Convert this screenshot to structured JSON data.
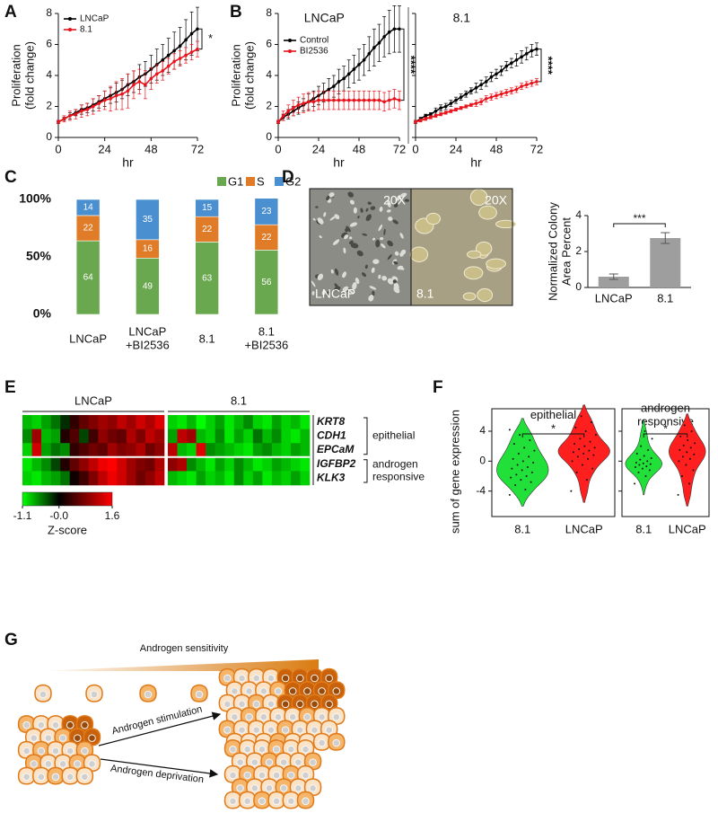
{
  "chart_data": [
    {
      "type": "line",
      "panel": "A",
      "xlabel": "hr",
      "ylabel": [
        "Proliferation",
        "(fold change)"
      ],
      "xlim": [
        0,
        72
      ],
      "xticks": [
        0,
        24,
        48,
        72
      ],
      "ylim": [
        0,
        8
      ],
      "yticks": [
        0,
        2,
        4,
        6,
        8
      ],
      "legend": "upper left",
      "annotation": "*",
      "x": [
        0,
        3,
        6,
        9,
        12,
        15,
        18,
        21,
        24,
        27,
        30,
        33,
        36,
        39,
        42,
        45,
        48,
        51,
        54,
        57,
        60,
        63,
        66,
        69,
        72
      ],
      "series": [
        {
          "name": "LNCaP",
          "color": "#000000",
          "values": [
            1.0,
            1.2,
            1.4,
            1.6,
            1.8,
            1.9,
            2.1,
            2.3,
            2.5,
            2.7,
            2.9,
            3.1,
            3.4,
            3.6,
            3.9,
            4.1,
            4.4,
            4.7,
            5.0,
            5.3,
            5.6,
            5.9,
            6.3,
            6.7,
            7.0
          ],
          "errors": [
            0.1,
            0.1,
            0.2,
            0.2,
            0.3,
            0.3,
            0.4,
            0.4,
            0.5,
            0.5,
            0.6,
            0.6,
            0.7,
            0.7,
            0.8,
            0.8,
            0.9,
            1.0,
            1.0,
            1.1,
            1.2,
            1.2,
            1.3,
            1.4,
            1.4
          ]
        },
        {
          "name": "8.1",
          "color": "#e8131b",
          "values": [
            1.0,
            1.2,
            1.4,
            1.5,
            1.7,
            1.8,
            2.0,
            2.2,
            2.4,
            2.5,
            2.7,
            2.8,
            3.0,
            3.4,
            3.6,
            3.4,
            3.8,
            4.1,
            4.3,
            4.6,
            4.9,
            5.1,
            5.3,
            5.5,
            5.7
          ],
          "errors": [
            0.1,
            0.2,
            0.3,
            0.3,
            0.4,
            0.4,
            0.5,
            0.5,
            0.6,
            0.8,
            0.9,
            1.0,
            1.1,
            0.9,
            0.8,
            0.9,
            0.7,
            0.6,
            0.6,
            0.5,
            0.5,
            0.5,
            0.5,
            0.5,
            0.5
          ]
        }
      ]
    },
    {
      "type": "line",
      "panel": "B",
      "title": "LNCaP",
      "xlabel": "hr",
      "ylabel": [
        "Proliferation",
        "(fold change)"
      ],
      "xlim": [
        0,
        72
      ],
      "xticks": [
        0,
        24,
        48,
        72
      ],
      "ylim": [
        0,
        8
      ],
      "yticks": [
        0,
        2,
        4,
        6,
        8
      ],
      "legend": "upper left",
      "annotation": "****",
      "x": [
        0,
        3,
        6,
        9,
        12,
        15,
        18,
        21,
        24,
        27,
        30,
        33,
        36,
        39,
        42,
        45,
        48,
        51,
        54,
        57,
        60,
        63,
        66,
        69,
        72
      ],
      "series": [
        {
          "name": "Control",
          "color": "#000000",
          "values": [
            1.0,
            1.3,
            1.5,
            1.7,
            1.9,
            2.1,
            2.3,
            2.5,
            2.7,
            2.9,
            3.1,
            3.3,
            3.6,
            3.8,
            4.1,
            4.4,
            4.7,
            5.0,
            5.4,
            5.8,
            6.1,
            6.5,
            6.8,
            7.0,
            7.0
          ],
          "errors": [
            0.1,
            0.2,
            0.3,
            0.3,
            0.4,
            0.4,
            0.5,
            0.5,
            0.6,
            0.6,
            0.7,
            0.7,
            0.8,
            0.8,
            0.9,
            0.9,
            1.0,
            1.0,
            1.1,
            1.2,
            1.2,
            1.3,
            1.4,
            1.5,
            1.5
          ]
        },
        {
          "name": "BI2536",
          "color": "#e8131b",
          "values": [
            1.0,
            1.4,
            1.7,
            1.9,
            2.1,
            2.2,
            2.3,
            2.3,
            2.4,
            2.4,
            2.4,
            2.4,
            2.4,
            2.4,
            2.4,
            2.4,
            2.4,
            2.4,
            2.4,
            2.4,
            2.4,
            2.3,
            2.4,
            2.5,
            2.4
          ],
          "errors": [
            0.1,
            0.3,
            0.4,
            0.5,
            0.5,
            0.6,
            0.6,
            0.6,
            0.6,
            0.6,
            0.6,
            0.6,
            0.6,
            0.6,
            0.6,
            0.6,
            0.6,
            0.6,
            0.6,
            0.6,
            0.6,
            0.6,
            0.6,
            0.6,
            0.6
          ]
        }
      ]
    },
    {
      "type": "line",
      "title": "8.1",
      "xlabel": "hr",
      "ytick_labels": false,
      "xlim": [
        0,
        72
      ],
      "xticks": [
        0,
        24,
        48,
        72
      ],
      "ylim": [
        0,
        8
      ],
      "yticks": [
        0,
        2,
        4,
        6,
        8
      ],
      "annotation": "****",
      "x": [
        0,
        3,
        6,
        9,
        12,
        15,
        18,
        21,
        24,
        27,
        30,
        33,
        36,
        39,
        42,
        45,
        48,
        51,
        54,
        57,
        60,
        63,
        66,
        69,
        72
      ],
      "series": [
        {
          "color": "#000000",
          "values": [
            1.0,
            1.2,
            1.4,
            1.5,
            1.7,
            1.9,
            2.0,
            2.2,
            2.4,
            2.6,
            2.8,
            3.0,
            3.2,
            3.4,
            3.6,
            3.9,
            4.1,
            4.3,
            4.6,
            4.8,
            5.0,
            5.2,
            5.4,
            5.6,
            5.7
          ],
          "errors": [
            0.1,
            0.1,
            0.1,
            0.1,
            0.2,
            0.2,
            0.2,
            0.2,
            0.2,
            0.2,
            0.2,
            0.2,
            0.3,
            0.3,
            0.3,
            0.3,
            0.3,
            0.3,
            0.3,
            0.3,
            0.4,
            0.4,
            0.4,
            0.4,
            0.4
          ]
        },
        {
          "color": "#e8131b",
          "values": [
            1.0,
            1.1,
            1.2,
            1.3,
            1.4,
            1.5,
            1.6,
            1.7,
            1.8,
            1.9,
            2.0,
            2.1,
            2.2,
            2.3,
            2.5,
            2.6,
            2.7,
            2.8,
            2.9,
            3.0,
            3.1,
            3.3,
            3.4,
            3.5,
            3.6
          ],
          "errors": [
            0.1,
            0.1,
            0.1,
            0.1,
            0.1,
            0.1,
            0.1,
            0.1,
            0.1,
            0.1,
            0.1,
            0.1,
            0.2,
            0.2,
            0.2,
            0.2,
            0.2,
            0.2,
            0.2,
            0.2,
            0.2,
            0.2,
            0.2,
            0.2,
            0.2
          ]
        }
      ]
    },
    {
      "type": "stacked_bar",
      "panel": "C",
      "categories": [
        "LNCaP",
        [
          "LNCaP",
          "+BI2536"
        ],
        "8.1",
        [
          "8.1",
          "+BI2536"
        ]
      ],
      "ylim": [
        0,
        100
      ],
      "yticks": [
        {
          "value": 0,
          "label": "0%"
        },
        {
          "value": 50,
          "label": "50%"
        },
        {
          "value": 100,
          "label": "100%"
        }
      ],
      "legend": "top",
      "series": [
        {
          "name": "G1",
          "color": "#6aa84f",
          "values": [
            64,
            49,
            63,
            56
          ]
        },
        {
          "name": "S",
          "color": "#e07b27",
          "values": [
            22,
            16,
            22,
            22
          ]
        },
        {
          "name": "G2",
          "color": "#4a8fcf",
          "values": [
            14,
            35,
            15,
            23
          ]
        }
      ]
    },
    {
      "type": "bar",
      "ylabel": [
        "Normalized Colony",
        "Area Percent"
      ],
      "categories": [
        "LNCaP",
        "8.1"
      ],
      "values": [
        0.6,
        2.75
      ],
      "errors": [
        0.15,
        0.3
      ],
      "color": "#9e9e9e",
      "ylim": [
        0,
        4
      ],
      "yticks": [
        0,
        2,
        4
      ],
      "annotation": "***"
    },
    {
      "type": "heatmap",
      "panel": "E",
      "column_groups": [
        "LNCaP",
        "8.1"
      ],
      "zlim": [
        -1.1,
        1.6
      ],
      "colors": [
        "#00ff00",
        "#000000",
        "#ff0000"
      ],
      "colorbar": {
        "ticks": [
          -1.1,
          {
            "value": 0,
            "label": "-0.0"
          },
          1.6
        ],
        "label": "Z-score"
      },
      "row_groups": [
        {
          "label": [
            "epithelial"
          ],
          "rows": [
            "KRT8",
            "CDH1",
            "EPCaM"
          ],
          "values": [
            [
              -0.8,
              -0.9,
              -0.7,
              -0.5,
              -0.2,
              0.3,
              0.6,
              0.8,
              1.0,
              0.9,
              1.2,
              1.0,
              1.3,
              1.1,
              1.4,
              -0.9,
              -1.0,
              -0.8,
              -1.1,
              -0.9,
              -0.7,
              -1.0,
              -0.8,
              -0.6,
              -0.9,
              -1.0,
              -0.7,
              -0.9,
              -0.8,
              -1.0
            ],
            [
              -0.6,
              1.0,
              -0.8,
              -0.7,
              0.2,
              0.5,
              -0.3,
              0.4,
              0.9,
              0.7,
              0.6,
              1.1,
              0.8,
              1.2,
              1.0,
              -0.7,
              1.2,
              1.0,
              -0.8,
              -0.9,
              -0.6,
              -1.0,
              -0.7,
              -0.9,
              -0.5,
              -0.8,
              -0.6,
              -0.9,
              -1.0,
              -0.8
            ],
            [
              -0.9,
              1.3,
              -0.7,
              -0.5,
              -0.6,
              0.3,
              0.5,
              0.7,
              0.6,
              1.0,
              0.8,
              0.9,
              1.1,
              0.7,
              0.9,
              1.2,
              -0.8,
              -0.9,
              1.4,
              -0.6,
              -0.7,
              -0.8,
              -0.9,
              -1.0,
              -0.7,
              -0.6,
              -0.8,
              -0.9,
              -0.7,
              -0.8
            ]
          ]
        },
        {
          "label": [
            "androgen",
            "responsive"
          ],
          "rows": [
            "IGFBP2",
            "KLK3"
          ],
          "values": [
            [
              -1.0,
              -0.8,
              -0.6,
              -0.3,
              0.2,
              0.6,
              0.9,
              1.2,
              1.5,
              1.6,
              1.3,
              1.0,
              0.8,
              0.7,
              1.1,
              0.9,
              1.1,
              -0.6,
              -0.8,
              -1.0,
              -0.7,
              -0.9,
              -0.6,
              -0.8,
              -1.0,
              -0.9,
              -0.7,
              -0.8,
              -0.9,
              -1.0
            ],
            [
              -0.9,
              -1.0,
              -0.8,
              -0.7,
              -0.5,
              0.1,
              0.4,
              0.8,
              1.2,
              1.5,
              1.3,
              1.0,
              0.7,
              0.9,
              1.2,
              -0.8,
              -0.9,
              -1.0,
              -0.7,
              -0.9,
              -0.8,
              -1.0,
              -0.6,
              -0.9,
              -0.7,
              -1.0,
              -0.8,
              -0.9,
              -0.7,
              -0.9
            ]
          ]
        }
      ]
    },
    {
      "type": "violin",
      "panel": "F",
      "title": [
        "epithelial"
      ],
      "ylabel": "sum of gene expression",
      "categories": [
        "8.1",
        "LNCaP"
      ],
      "colors": [
        "#22e03a",
        "#ff1f1f"
      ],
      "ylim": [
        -7.4,
        7
      ],
      "yticks": [
        4,
        0,
        -4
      ],
      "annotation": "*",
      "points": [
        [
          -4.5,
          -3.8,
          -3.2,
          -2.8,
          -2.5,
          -2.2,
          -2,
          -1.8,
          -1.5,
          -1.2,
          -1,
          -0.8,
          -0.5,
          -0.2,
          0,
          0.3,
          0.6,
          1,
          1.4,
          1.8,
          2.3,
          2.8,
          3.5,
          4.2
        ],
        [
          -4,
          -2.5,
          -1.5,
          -1,
          -0.5,
          0,
          0.3,
          0.6,
          0.8,
          1,
          1.2,
          1.4,
          1.6,
          1.8,
          2,
          2.3,
          2.6,
          3,
          3.5,
          4,
          4.5,
          5.2,
          6
        ]
      ]
    },
    {
      "type": "violin",
      "title": [
        "androgen",
        "responsive"
      ],
      "ytick_labels": false,
      "categories": [
        "8.1",
        "LNCaP"
      ],
      "colors": [
        "#22e03a",
        "#ff1f1f"
      ],
      "ylim": [
        -7.4,
        7
      ],
      "yticks": [
        4,
        0,
        -4
      ],
      "annotation": "*",
      "points": [
        [
          -3,
          -2,
          -1.5,
          -1.2,
          -1,
          -0.8,
          -0.7,
          -0.5,
          -0.4,
          -0.3,
          -0.2,
          0,
          0.2,
          0.4,
          0.7,
          1,
          1.5,
          2,
          3,
          4
        ],
        [
          -4.5,
          -3,
          -2,
          -1.2,
          -0.5,
          0,
          0.3,
          0.6,
          0.9,
          1.2,
          1.5,
          1.8,
          2.1,
          2.4,
          2.8,
          3.3,
          4,
          4.8
        ]
      ]
    }
  ],
  "micrographs": {
    "panel": "D",
    "images": [
      {
        "magnification": "20X",
        "label": "LNCaP"
      },
      {
        "magnification": "20X",
        "label": "8.1"
      }
    ]
  },
  "diagram": {
    "panel": "G",
    "gradient_label": "Androgen sensitivity",
    "arrows": [
      "Androgen stimulation",
      "Androgen deprivation"
    ]
  }
}
